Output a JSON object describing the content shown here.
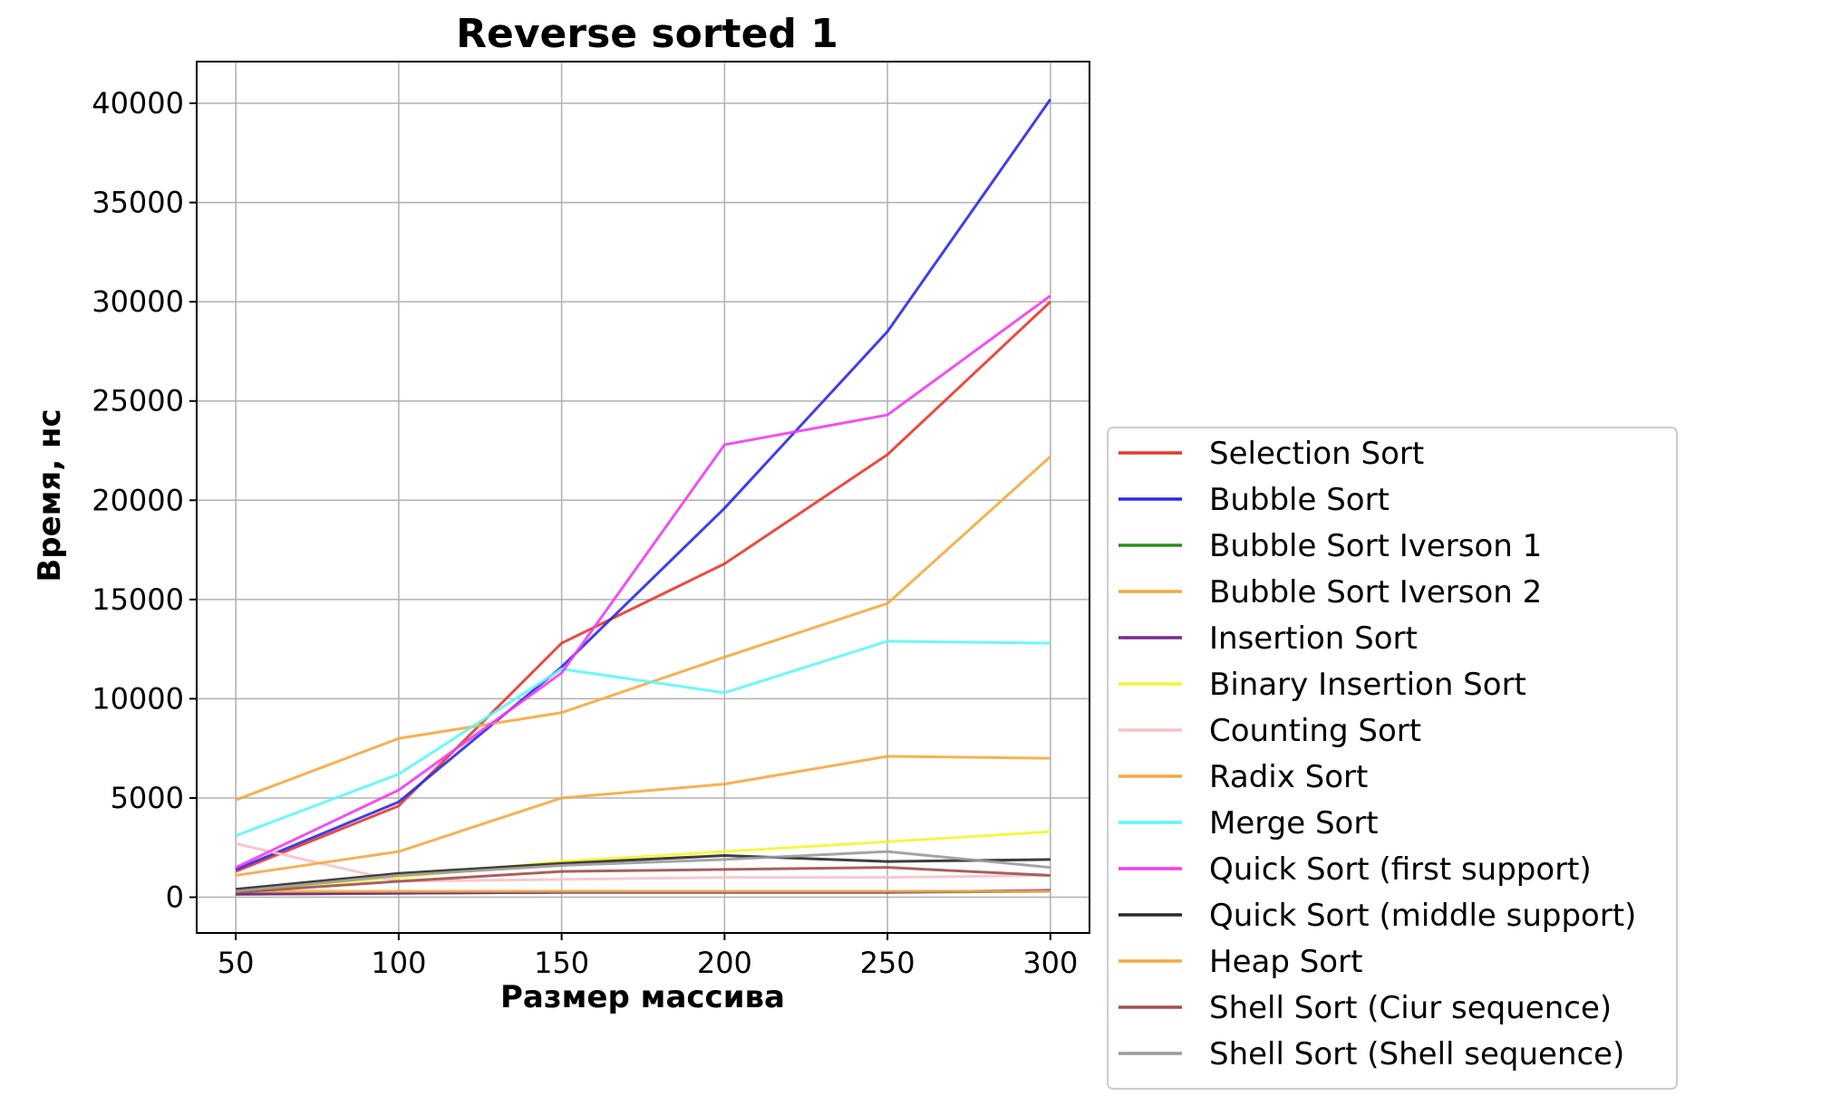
{
  "chart_data": {
    "type": "line",
    "title": "Reverse sorted 1",
    "xlabel": "Размер массива",
    "ylabel": "Время, нс",
    "x": [
      50,
      100,
      150,
      200,
      250,
      300
    ],
    "xticks": [
      "50",
      "100",
      "150",
      "200",
      "250",
      "300"
    ],
    "yticks": [
      "0",
      "5000",
      "10000",
      "15000",
      "20000",
      "25000",
      "30000",
      "35000",
      "40000"
    ],
    "xlim": [
      38,
      312
    ],
    "ylim": [
      -1800,
      42100
    ],
    "grid": true,
    "legend_position": "outside-right-bottom",
    "series": [
      {
        "name": "Selection Sort",
        "color": "#e8372c",
        "values": [
          1300,
          4600,
          12800,
          16800,
          22300,
          30000
        ]
      },
      {
        "name": "Bubble Sort",
        "color": "#2a2ae8",
        "values": [
          1400,
          4800,
          11600,
          19600,
          28500,
          40200
        ]
      },
      {
        "name": "Bubble Sort Iverson 1",
        "color": "#2e8b1e",
        "values": [
          150,
          200,
          250,
          250,
          250,
          300
        ]
      },
      {
        "name": "Bubble Sort Iverson 2",
        "color": "#f4a840",
        "values": [
          4900,
          8000,
          9300,
          12100,
          14800,
          22200
        ]
      },
      {
        "name": "Insertion Sort",
        "color": "#7b2a8a",
        "values": [
          150,
          200,
          250,
          250,
          250,
          350
        ]
      },
      {
        "name": "Binary Insertion Sort",
        "color": "#f5f530",
        "values": [
          300,
          1000,
          1800,
          2300,
          2800,
          3300
        ]
      },
      {
        "name": "Counting Sort",
        "color": "#f7c1cb",
        "values": [
          2700,
          800,
          900,
          1000,
          1000,
          1100
        ]
      },
      {
        "name": "Radix Sort",
        "color": "#f4a840",
        "values": [
          1100,
          2300,
          5000,
          5700,
          7100,
          7000
        ]
      },
      {
        "name": "Merge Sort",
        "color": "#5cf7f7",
        "values": [
          3100,
          6200,
          11500,
          10300,
          12900,
          12800
        ]
      },
      {
        "name": "Quick Sort (first support)",
        "color": "#f03cf0",
        "values": [
          1500,
          5400,
          11300,
          22800,
          24300,
          30300
        ]
      },
      {
        "name": "Quick Sort (middle support)",
        "color": "#2a2a2a",
        "values": [
          400,
          1200,
          1700,
          2100,
          1800,
          1900
        ]
      },
      {
        "name": "Heap Sort",
        "color": "#f4a840",
        "values": [
          300,
          300,
          300,
          300,
          300,
          300
        ]
      },
      {
        "name": "Shell Sort (Ciur sequence)",
        "color": "#a0504a",
        "values": [
          250,
          800,
          1300,
          1400,
          1500,
          1100
        ]
      },
      {
        "name": "Shell Sort (Shell sequence)",
        "color": "#9a9a9a",
        "values": [
          300,
          1100,
          1600,
          1900,
          2300,
          1500
        ]
      }
    ]
  }
}
